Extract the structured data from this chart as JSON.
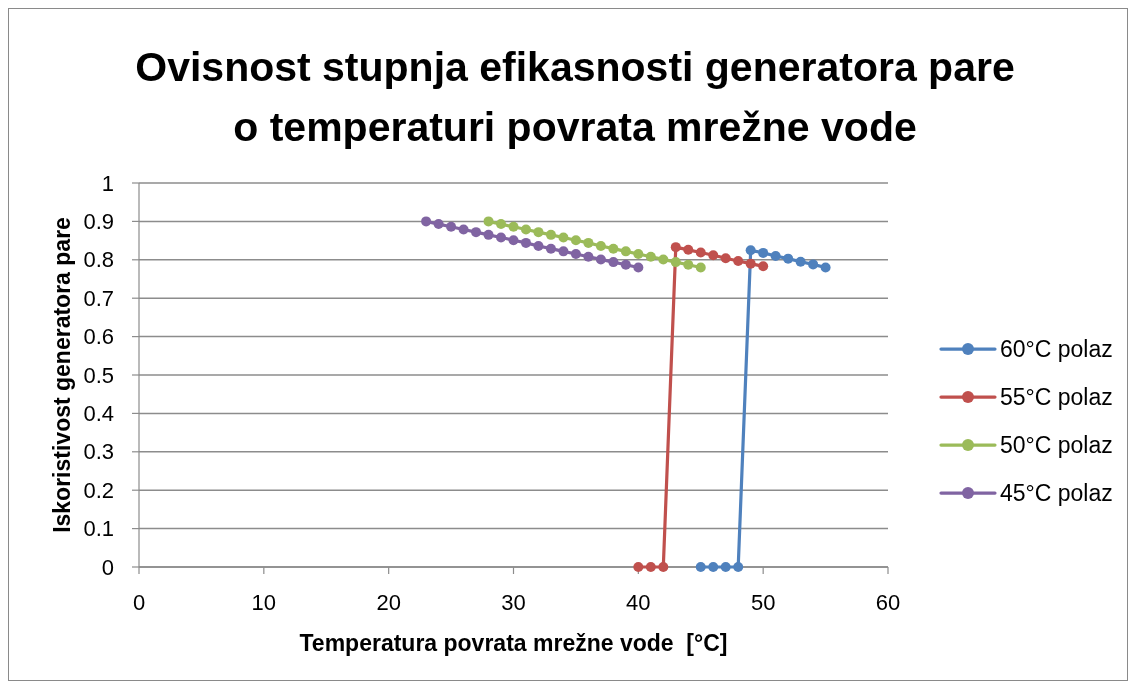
{
  "chart_data": {
    "type": "line",
    "title": "Ovisnost stupnja efikasnosti generatora pare\no temperaturi povrata mrežne vode",
    "xlabel": "Temperatura povrata mrežne vode  [°C]",
    "ylabel": "Iskoristivost generatora pare",
    "xlim": [
      0,
      60
    ],
    "xticks": [
      0,
      10,
      20,
      30,
      40,
      50,
      60
    ],
    "ylim": [
      0,
      1
    ],
    "yticks": [
      0,
      0.1,
      0.2,
      0.3,
      0.4,
      0.5,
      0.6,
      0.7,
      0.8,
      0.9,
      1
    ],
    "grid": "y",
    "legend": "right",
    "marker": "circle",
    "line_style": "solid",
    "series": [
      {
        "name": "60°C polaz",
        "color": "#4f81bd",
        "x": [
          45,
          46,
          47,
          48,
          49,
          50,
          51,
          52,
          53,
          54,
          55
        ],
        "values": [
          0,
          0,
          0,
          0,
          0.825,
          0.818,
          0.81,
          0.803,
          0.795,
          0.788,
          0.78
        ]
      },
      {
        "name": "55°C polaz",
        "color": "#c0504d",
        "x": [
          40,
          41,
          42,
          43,
          44,
          45,
          46,
          47,
          48,
          49,
          50
        ],
        "values": [
          0,
          0,
          0,
          0.833,
          0.826,
          0.819,
          0.812,
          0.804,
          0.797,
          0.79,
          0.783
        ]
      },
      {
        "name": "50°C polaz",
        "color": "#9bbb59",
        "x": [
          28,
          29,
          30,
          31,
          32,
          33,
          34,
          35,
          36,
          37,
          38,
          39,
          40,
          41,
          42,
          43,
          44,
          45
        ],
        "values": [
          0.9,
          0.893,
          0.886,
          0.879,
          0.872,
          0.865,
          0.858,
          0.851,
          0.844,
          0.836,
          0.829,
          0.822,
          0.815,
          0.808,
          0.801,
          0.794,
          0.787,
          0.78
        ]
      },
      {
        "name": "45°C polaz",
        "color": "#8064a2",
        "x": [
          23,
          24,
          25,
          26,
          27,
          28,
          29,
          30,
          31,
          32,
          33,
          34,
          35,
          36,
          37,
          38,
          39,
          40
        ],
        "values": [
          0.9,
          0.893,
          0.886,
          0.879,
          0.872,
          0.865,
          0.858,
          0.851,
          0.844,
          0.836,
          0.829,
          0.822,
          0.815,
          0.808,
          0.801,
          0.794,
          0.787,
          0.78
        ]
      }
    ]
  }
}
